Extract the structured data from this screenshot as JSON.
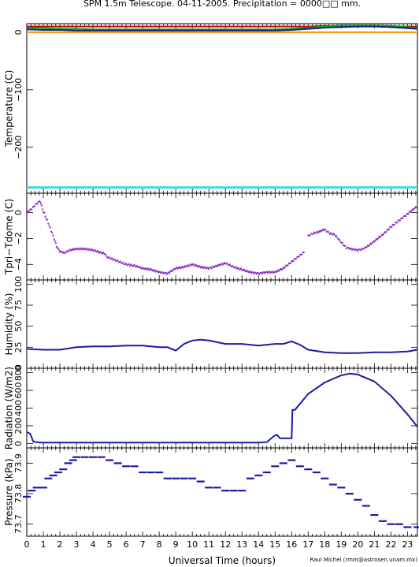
{
  "title": "SPM 1.5m Telescope. 04-11-2005. Precipitation = 0000□□ mm.",
  "xlabel": "Universal Time (hours)",
  "credit": "Raul Michel (rmm@astrosen.unam.mx)",
  "x_ticks": [
    "0",
    "1",
    "2",
    "3",
    "4",
    "5",
    "6",
    "7",
    "8",
    "9",
    "10",
    "11",
    "12",
    "13",
    "14",
    "15",
    "16",
    "17",
    "18",
    "19",
    "20",
    "21",
    "22",
    "23"
  ],
  "colors": {
    "red": "#cc0000",
    "orange": "#ff8800",
    "green": "#00aa00",
    "darkblue": "#1a1a8a",
    "cyan": "#33dddd",
    "purple": "#8833cc",
    "blue": "#1a1aaa"
  },
  "chart_data": [
    {
      "type": "line",
      "ylabel": "Temperature (C)",
      "xlim": [
        0,
        23.6
      ],
      "ylim": [
        -280,
        15
      ],
      "y_ticks": [
        "0",
        "−100",
        "−200"
      ],
      "y_tick_values": [
        0,
        -100,
        -200
      ],
      "x": [
        0,
        1,
        2,
        3,
        4,
        5,
        6,
        7,
        8,
        9,
        10,
        11,
        12,
        13,
        14,
        15,
        16,
        17,
        18,
        19,
        20,
        21,
        22,
        23,
        23.6
      ],
      "series": [
        {
          "color_key": "red",
          "values": [
            10,
            10,
            10,
            10,
            10,
            10,
            10,
            10,
            10,
            10,
            10,
            10,
            10,
            10,
            10,
            10,
            10,
            10,
            11,
            11,
            11,
            11,
            10,
            10,
            10
          ]
        },
        {
          "color_key": "green",
          "values": [
            8,
            7,
            6,
            6,
            5,
            5,
            5,
            5,
            5,
            5,
            5,
            5,
            5,
            5,
            5,
            5,
            6,
            8,
            10,
            12,
            12,
            12,
            11,
            9,
            8
          ]
        },
        {
          "color_key": "darkblue",
          "values": [
            5,
            4,
            4,
            3,
            3,
            3,
            3,
            3,
            3,
            3,
            3,
            3,
            3,
            3,
            3,
            3,
            4,
            6,
            8,
            9,
            10,
            10,
            9,
            7,
            6
          ]
        },
        {
          "color_key": "orange",
          "values": [
            0,
            0,
            0,
            0,
            0,
            0,
            0,
            0,
            0,
            0,
            0,
            0,
            0,
            0,
            0,
            0,
            0,
            0,
            0,
            0,
            0,
            0,
            0,
            0,
            0
          ]
        },
        {
          "color_key": "cyan",
          "values": [
            -270,
            -270,
            -270,
            -270,
            -270,
            -270,
            -270,
            -270,
            -270,
            -270,
            -270,
            -270,
            -270,
            -270,
            -270,
            -270,
            -270,
            -270,
            -270,
            -270,
            -270,
            -270,
            -270,
            -270,
            -270
          ]
        }
      ]
    },
    {
      "type": "scatter",
      "ylabel": "Tpri−Tdome (C)",
      "xlim": [
        0,
        23.6
      ],
      "ylim": [
        -5.2,
        1.5
      ],
      "y_ticks": [
        "0",
        "−2",
        "−4"
      ],
      "y_tick_values": [
        0,
        -2,
        -4
      ],
      "series": [
        {
          "color_key": "purple",
          "segments": [
            {
              "x": [
                0,
                0.3,
                0.6,
                0.8,
                1.0,
                1.3,
                1.6,
                1.8,
                2.0,
                2.3,
                2.6,
                3.0,
                3.5,
                4.0,
                4.5,
                4.8
              ],
              "values": [
                0.0,
                0.3,
                0.7,
                0.9,
                0.1,
                -0.8,
                -1.8,
                -2.6,
                -3.0,
                -3.1,
                -2.9,
                -2.8,
                -2.8,
                -2.9,
                -3.1,
                -3.2
              ]
            },
            {
              "x": [
                4.8,
                5.2,
                5.6,
                6.0,
                6.5,
                7.0,
                7.5,
                8.0,
                8.5,
                9.0,
                9.5,
                10.0,
                10.5,
                11.0,
                11.5,
                12.0,
                12.5,
                13.0,
                13.5,
                14.0,
                14.5,
                15.0,
                15.5,
                16.0,
                16.5,
                16.8
              ],
              "values": [
                -3.4,
                -3.6,
                -3.8,
                -4.0,
                -4.1,
                -4.3,
                -4.4,
                -4.6,
                -4.7,
                -4.3,
                -4.2,
                -4.0,
                -4.2,
                -4.3,
                -4.1,
                -3.9,
                -4.2,
                -4.4,
                -4.6,
                -4.7,
                -4.6,
                -4.6,
                -4.3,
                -3.8,
                -3.3,
                -3.0
              ]
            },
            {
              "x": [
                17.0,
                17.3,
                17.6,
                18.0,
                18.3,
                18.6,
                19.0,
                19.3,
                19.6,
                20.0,
                20.3,
                20.6,
                21.0,
                21.5,
                22.0,
                22.5,
                23.0,
                23.6
              ],
              "values": [
                -1.8,
                -1.6,
                -1.5,
                -1.3,
                -1.6,
                -1.7,
                -2.3,
                -2.7,
                -2.8,
                -2.9,
                -2.8,
                -2.6,
                -2.2,
                -1.7,
                -1.1,
                -0.6,
                -0.1,
                0.5
              ]
            }
          ]
        }
      ]
    },
    {
      "type": "line",
      "ylabel": "Humidity (%)",
      "xlim": [
        0,
        23.6
      ],
      "ylim": [
        0,
        105
      ],
      "y_ticks": [
        "0",
        "25",
        "50",
        "75",
        "100"
      ],
      "y_tick_values": [
        0,
        25,
        50,
        75,
        100
      ],
      "x": [
        0,
        1,
        2,
        3,
        4,
        5,
        6,
        7,
        8,
        8.5,
        9,
        9.5,
        10,
        10.5,
        11,
        12,
        13,
        14,
        15,
        15.5,
        16,
        16.5,
        17,
        18,
        19,
        20,
        21,
        22,
        23,
        23.6
      ],
      "series": [
        {
          "color_key": "blue",
          "values": [
            23,
            22,
            22,
            25,
            26,
            26,
            27,
            27,
            25,
            25,
            21,
            29,
            33,
            34,
            33,
            29,
            29,
            27,
            29,
            29,
            32,
            28,
            22,
            19,
            18,
            18,
            19,
            19,
            20,
            22
          ]
        }
      ]
    },
    {
      "type": "line",
      "ylabel": "Radiation (W/m2)",
      "xlim": [
        0,
        23.6
      ],
      "ylim": [
        -50,
        850
      ],
      "y_ticks": [
        "0",
        "200",
        "400",
        "600",
        "800"
      ],
      "y_tick_values": [
        0,
        200,
        400,
        600,
        800
      ],
      "x": [
        0,
        0.2,
        0.4,
        0.8,
        1,
        2,
        3,
        4,
        5,
        6,
        7,
        8,
        9,
        10,
        11,
        12,
        13,
        14,
        14.5,
        14.9,
        15.1,
        15.3,
        15.6,
        16.0,
        16.05,
        16.2,
        17,
        18,
        19,
        19.5,
        20,
        21,
        22,
        23,
        23.6
      ],
      "series": [
        {
          "color_key": "blue",
          "values": [
            130,
            110,
            20,
            10,
            10,
            10,
            10,
            10,
            10,
            10,
            10,
            10,
            10,
            10,
            10,
            10,
            10,
            10,
            15,
            80,
            100,
            60,
            60,
            60,
            380,
            380,
            560,
            690,
            770,
            790,
            780,
            700,
            540,
            330,
            190
          ]
        }
      ]
    },
    {
      "type": "scatter",
      "ylabel": "Pressure (kPa)",
      "xlim": [
        0,
        23.6
      ],
      "ylim": [
        73.66,
        73.95
      ],
      "y_ticks": [
        "73.7",
        "73.8",
        "73.9"
      ],
      "y_tick_values": [
        73.7,
        73.8,
        73.9
      ],
      "series": [
        {
          "color_key": "blue",
          "segments": [
            {
              "x": [
                0,
                0.3,
                0.6,
                1.0,
                1.3,
                1.6,
                1.9,
                2.2,
                2.5,
                2.8,
                3.0,
                3.5,
                4.0,
                4.5,
                5.0,
                5.5,
                6.0,
                6.5,
                7.0,
                7.5,
                8.0,
                8.5,
                9.0,
                9.5,
                10.0,
                10.5,
                11.0,
                11.5,
                12.0,
                12.5,
                13.0,
                13.5,
                14.0,
                14.5,
                15.0,
                15.5,
                16.0,
                16.5,
                17.0,
                17.5,
                18.0,
                18.5,
                19.0,
                19.5,
                20.0,
                20.5,
                21.0,
                21.5,
                22.0,
                22.5,
                23.0,
                23.6
              ],
              "values": [
                73.79,
                73.81,
                73.82,
                73.82,
                73.85,
                73.86,
                73.87,
                73.88,
                73.9,
                73.91,
                73.92,
                73.92,
                73.92,
                73.92,
                73.91,
                73.9,
                73.89,
                73.89,
                73.87,
                73.87,
                73.87,
                73.85,
                73.85,
                73.85,
                73.85,
                73.84,
                73.82,
                73.82,
                73.81,
                73.81,
                73.81,
                73.85,
                73.86,
                73.87,
                73.89,
                73.9,
                73.91,
                73.89,
                73.88,
                73.87,
                73.85,
                73.83,
                73.82,
                73.8,
                73.78,
                73.76,
                73.73,
                73.71,
                73.7,
                73.7,
                73.69,
                73.69
              ]
            }
          ]
        }
      ]
    }
  ]
}
